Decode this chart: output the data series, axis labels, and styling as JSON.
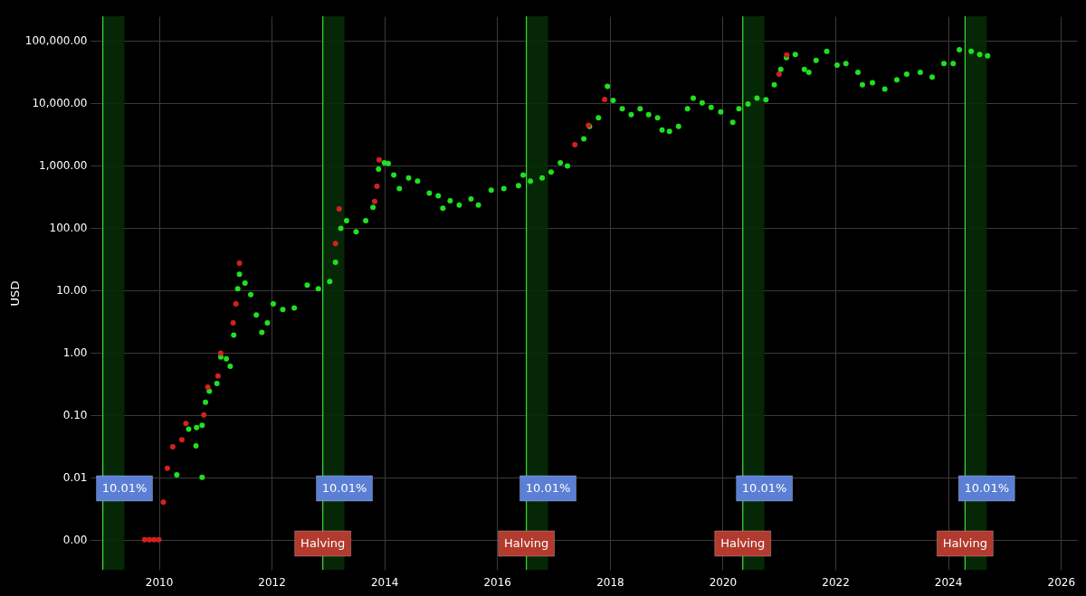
{
  "chart_data": {
    "type": "scatter",
    "ylabel": "USD",
    "log": "y",
    "grid": true,
    "marker": "circle",
    "xlim": [
      "2008-10-15",
      "2026-04-15"
    ],
    "xticks": [
      "2010",
      "2012",
      "2014",
      "2016",
      "2018",
      "2020",
      "2022",
      "2024",
      "2026"
    ],
    "ylim": [
      0.00033,
      245000
    ],
    "yticks": [
      {
        "value": 0.001,
        "label": "0.00"
      },
      {
        "value": 0.01,
        "label": "0.01"
      },
      {
        "value": 0.1,
        "label": "0.10"
      },
      {
        "value": 1,
        "label": "1.00"
      },
      {
        "value": 10,
        "label": "10.00"
      },
      {
        "value": 100,
        "label": "100.00"
      },
      {
        "value": 1000,
        "label": "1,000.00"
      },
      {
        "value": 10000,
        "label": "10,000.00"
      },
      {
        "value": 100000,
        "label": "100,000.00"
      }
    ],
    "series": [
      {
        "color": "#20e020",
        "x": [
          "2010-04-27",
          "2010-08-29",
          "2010-07-13",
          "2010-09-02",
          "2010-10-08",
          "2010-10-08",
          "2010-10-30",
          "2010-11-24",
          "2011-01-12",
          "2011-02-06",
          "2011-03-14",
          "2011-04-08",
          "2011-05-01",
          "2011-05-27",
          "2011-06-07",
          "2011-07-13",
          "2011-08-19",
          "2011-09-24",
          "2011-10-30",
          "2011-12-05",
          "2012-01-12",
          "2012-03-14",
          "2012-05-27",
          "2012-08-19",
          "2012-10-30",
          "2013-01-12",
          "2013-02-18",
          "2013-03-25",
          "2013-05-01",
          "2013-07-02",
          "2013-09-02",
          "2013-10-19",
          "2013-11-24",
          "2014-01-01",
          "2014-01-26",
          "2014-03-03",
          "2014-04-08",
          "2014-06-07",
          "2014-08-04",
          "2014-10-19",
          "2014-12-16",
          "2015-01-15",
          "2015-03-03",
          "2015-05-01",
          "2015-07-16",
          "2015-09-02",
          "2015-11-24",
          "2016-02-14",
          "2016-05-19",
          "2016-06-18",
          "2016-08-04",
          "2016-10-19",
          "2016-12-16",
          "2017-02-14",
          "2017-04-01",
          "2017-07-16",
          "2017-08-22",
          "2017-10-19",
          "2017-12-16",
          "2018-01-22",
          "2018-03-22",
          "2018-05-19",
          "2018-07-16",
          "2018-09-09",
          "2018-11-06",
          "2018-12-05",
          "2019-01-22",
          "2019-03-22",
          "2019-05-19",
          "2019-06-25",
          "2019-08-22",
          "2019-10-19",
          "2019-12-20",
          "2020-03-07",
          "2020-04-16",
          "2020-06-14",
          "2020-08-11",
          "2020-10-08",
          "2020-12-01",
          "2021-01-12",
          "2021-02-18",
          "2021-04-16",
          "2021-06-14",
          "2021-07-13",
          "2021-08-29",
          "2021-11-06",
          "2022-01-12",
          "2022-03-10",
          "2022-05-27",
          "2022-06-25",
          "2022-08-29",
          "2022-11-17",
          "2023-02-03",
          "2023-04-08",
          "2023-07-05",
          "2023-09-20",
          "2023-12-05",
          "2024-02-03",
          "2024-03-14",
          "2024-05-30",
          "2024-07-24",
          "2024-09-13"
        ],
        "values": [
          0.011,
          0.032,
          0.059,
          0.063,
          0.068,
          0.01,
          0.16,
          0.24,
          0.32,
          0.85,
          0.79,
          0.6,
          1.9,
          10.5,
          18,
          13,
          8.5,
          4,
          2.1,
          3,
          6,
          4.9,
          5.2,
          12,
          10.5,
          13.8,
          28,
          98,
          130,
          86,
          130,
          213,
          870,
          1100,
          1070,
          700,
          425,
          630,
          560,
          360,
          325,
          205,
          270,
          230,
          290,
          230,
          400,
          425,
          475,
          700,
          560,
          630,
          780,
          1100,
          980,
          2660,
          4200,
          5800,
          18500,
          11000,
          8100,
          6500,
          8100,
          6500,
          5800,
          3700,
          3500,
          4200,
          8100,
          12000,
          10000,
          8500,
          7200,
          4900,
          8100,
          9600,
          12000,
          11300,
          19600,
          34500,
          53000,
          60000,
          34500,
          31000,
          48000,
          67000,
          40500,
          43000,
          31000,
          19600,
          21000,
          16700,
          23400,
          29000,
          31000,
          26000,
          43000,
          43000,
          71000,
          67000,
          60000,
          57000
        ]
      },
      {
        "color": "#d42020",
        "x": [
          "2009-10-01",
          "2009-11-01",
          "2009-12-01",
          "2010-01-01",
          "2010-01-30",
          "2010-02-25",
          "2010-04-01",
          "2010-05-30",
          "2010-06-25",
          "2010-10-19",
          "2010-11-14",
          "2011-01-19",
          "2011-02-06",
          "2011-04-27",
          "2011-05-15",
          "2011-06-07",
          "2013-02-18",
          "2013-03-14",
          "2013-10-30",
          "2013-11-14",
          "2013-11-28",
          "2017-05-19",
          "2017-08-15",
          "2017-11-28",
          "2021-01-01",
          "2021-02-20"
        ],
        "values": [
          0.001,
          0.001,
          0.001,
          0.001,
          0.004,
          0.014,
          0.031,
          0.04,
          0.073,
          0.1,
          0.28,
          0.42,
          0.98,
          3,
          6,
          27,
          56,
          200,
          263,
          460,
          1230,
          2140,
          4400,
          11400,
          29000,
          59000
        ]
      }
    ],
    "ref_lines": [
      {
        "axis": "x",
        "value": "2009-01-03",
        "label": null,
        "color": "#3ddc3d"
      },
      {
        "axis": "x",
        "value": "2012-11-28",
        "label": "Halving",
        "color": "#3ddc3d"
      },
      {
        "axis": "x",
        "value": "2016-07-09",
        "label": "Halving",
        "color": "#3ddc3d"
      },
      {
        "axis": "x",
        "value": "2020-05-11",
        "label": "Halving",
        "color": "#3ddc3d"
      },
      {
        "axis": "x",
        "value": "2024-04-20",
        "label": "Halving",
        "color": "#3ddc3d"
      }
    ],
    "bands": [
      {
        "axis": "x",
        "from": "2009-01-03",
        "to": "2009-05-23",
        "label": "10.01%",
        "color": "#062b06"
      },
      {
        "axis": "x",
        "from": "2012-11-28",
        "to": "2013-04-17",
        "label": "10.01%",
        "color": "#062b06"
      },
      {
        "axis": "x",
        "from": "2016-07-09",
        "to": "2016-11-26",
        "label": "10.01%",
        "color": "#062b06"
      },
      {
        "axis": "x",
        "from": "2020-05-11",
        "to": "2020-09-28",
        "label": "10.01%",
        "color": "#062b06"
      },
      {
        "axis": "x",
        "from": "2024-04-20",
        "to": "2024-09-07",
        "label": "10.01%",
        "color": "#062b06"
      }
    ]
  }
}
